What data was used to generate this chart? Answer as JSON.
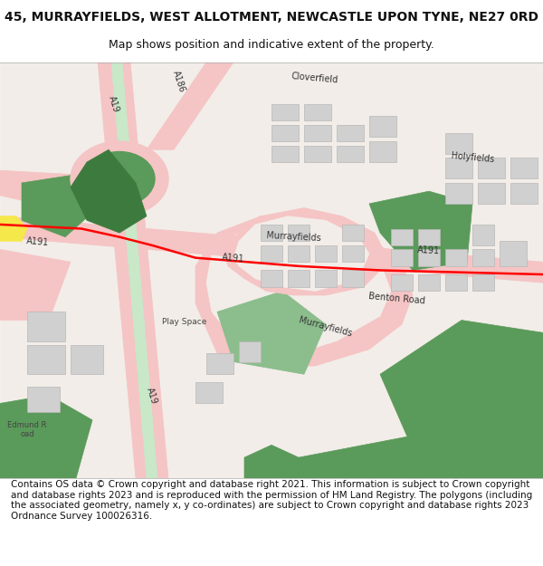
{
  "title_line1": "45, MURRAYFIELDS, WEST ALLOTMENT, NEWCASTLE UPON TYNE, NE27 0RD",
  "title_line2": "Map shows position and indicative extent of the property.",
  "footer": "Contains OS data © Crown copyright and database right 2021. This information is subject to Crown copyright and database rights 2023 and is reproduced with the permission of HM Land Registry. The polygons (including the associated geometry, namely x, y co-ordinates) are subject to Crown copyright and database rights 2023 Ordnance Survey 100026316.",
  "bg_color": "#ffffff",
  "map_bg": "#f2ede8",
  "road_major_color": "#f5c4c4",
  "road_motorway_stripe": "#c8e8c8",
  "green_area_color": "#5a9a5a",
  "green_area_dark": "#3d7a3d",
  "green_area_light": "#8cbd8c",
  "building_color": "#d0d0d0",
  "building_edge": "#b8b8b8",
  "red_line_color": "#ff0000",
  "yellow_color": "#f5e84a",
  "text_color": "#333333",
  "title_fontsize": 10,
  "subtitle_fontsize": 9,
  "footer_fontsize": 7.5,
  "label_fontsize": 7
}
